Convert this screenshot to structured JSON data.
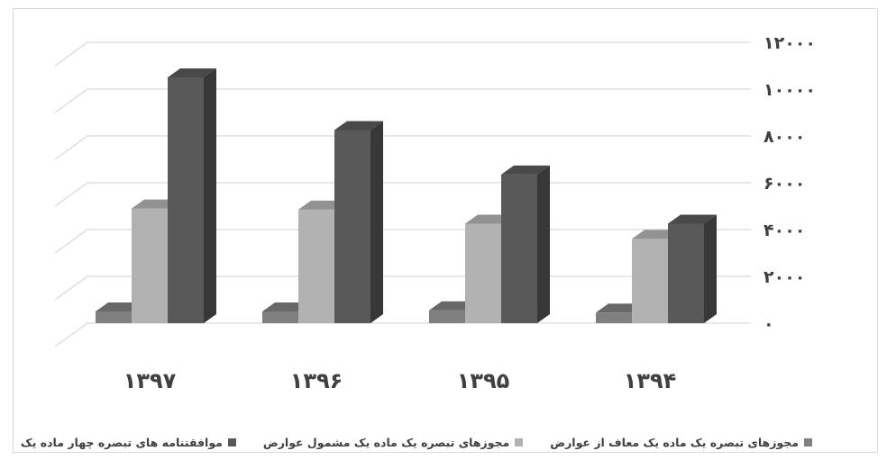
{
  "chart_data": {
    "type": "bar",
    "categories": [
      "۱۳۹۷",
      "۱۳۹۶",
      "۱۳۹۵",
      "۱۳۹۴"
    ],
    "series": [
      {
        "name": "مجوزهای تبصره یک ماده یک معاف از عوارض",
        "color": "#7f7f7f",
        "values": [
          500,
          500,
          550,
          450
        ]
      },
      {
        "name": "مجوزهای تبصره یک ماده یک مشمول عوارض",
        "color": "#b2b2b2",
        "values": [
          4900,
          4850,
          4250,
          3600
        ]
      },
      {
        "name": "موافقتنامه های تبصره چهار ماده یک",
        "color": "#595959",
        "values": [
          10500,
          8250,
          6350,
          4250
        ]
      }
    ],
    "yticks": [
      "۰",
      "۲۰۰۰",
      "۴۰۰۰",
      "۶۰۰۰",
      "۸۰۰۰",
      "۱۰۰۰۰",
      "۱۲۰۰۰"
    ],
    "ylim": [
      0,
      12000
    ],
    "grid": true,
    "legend_position": "bottom",
    "three_d": true,
    "yaxis_side": "right"
  }
}
